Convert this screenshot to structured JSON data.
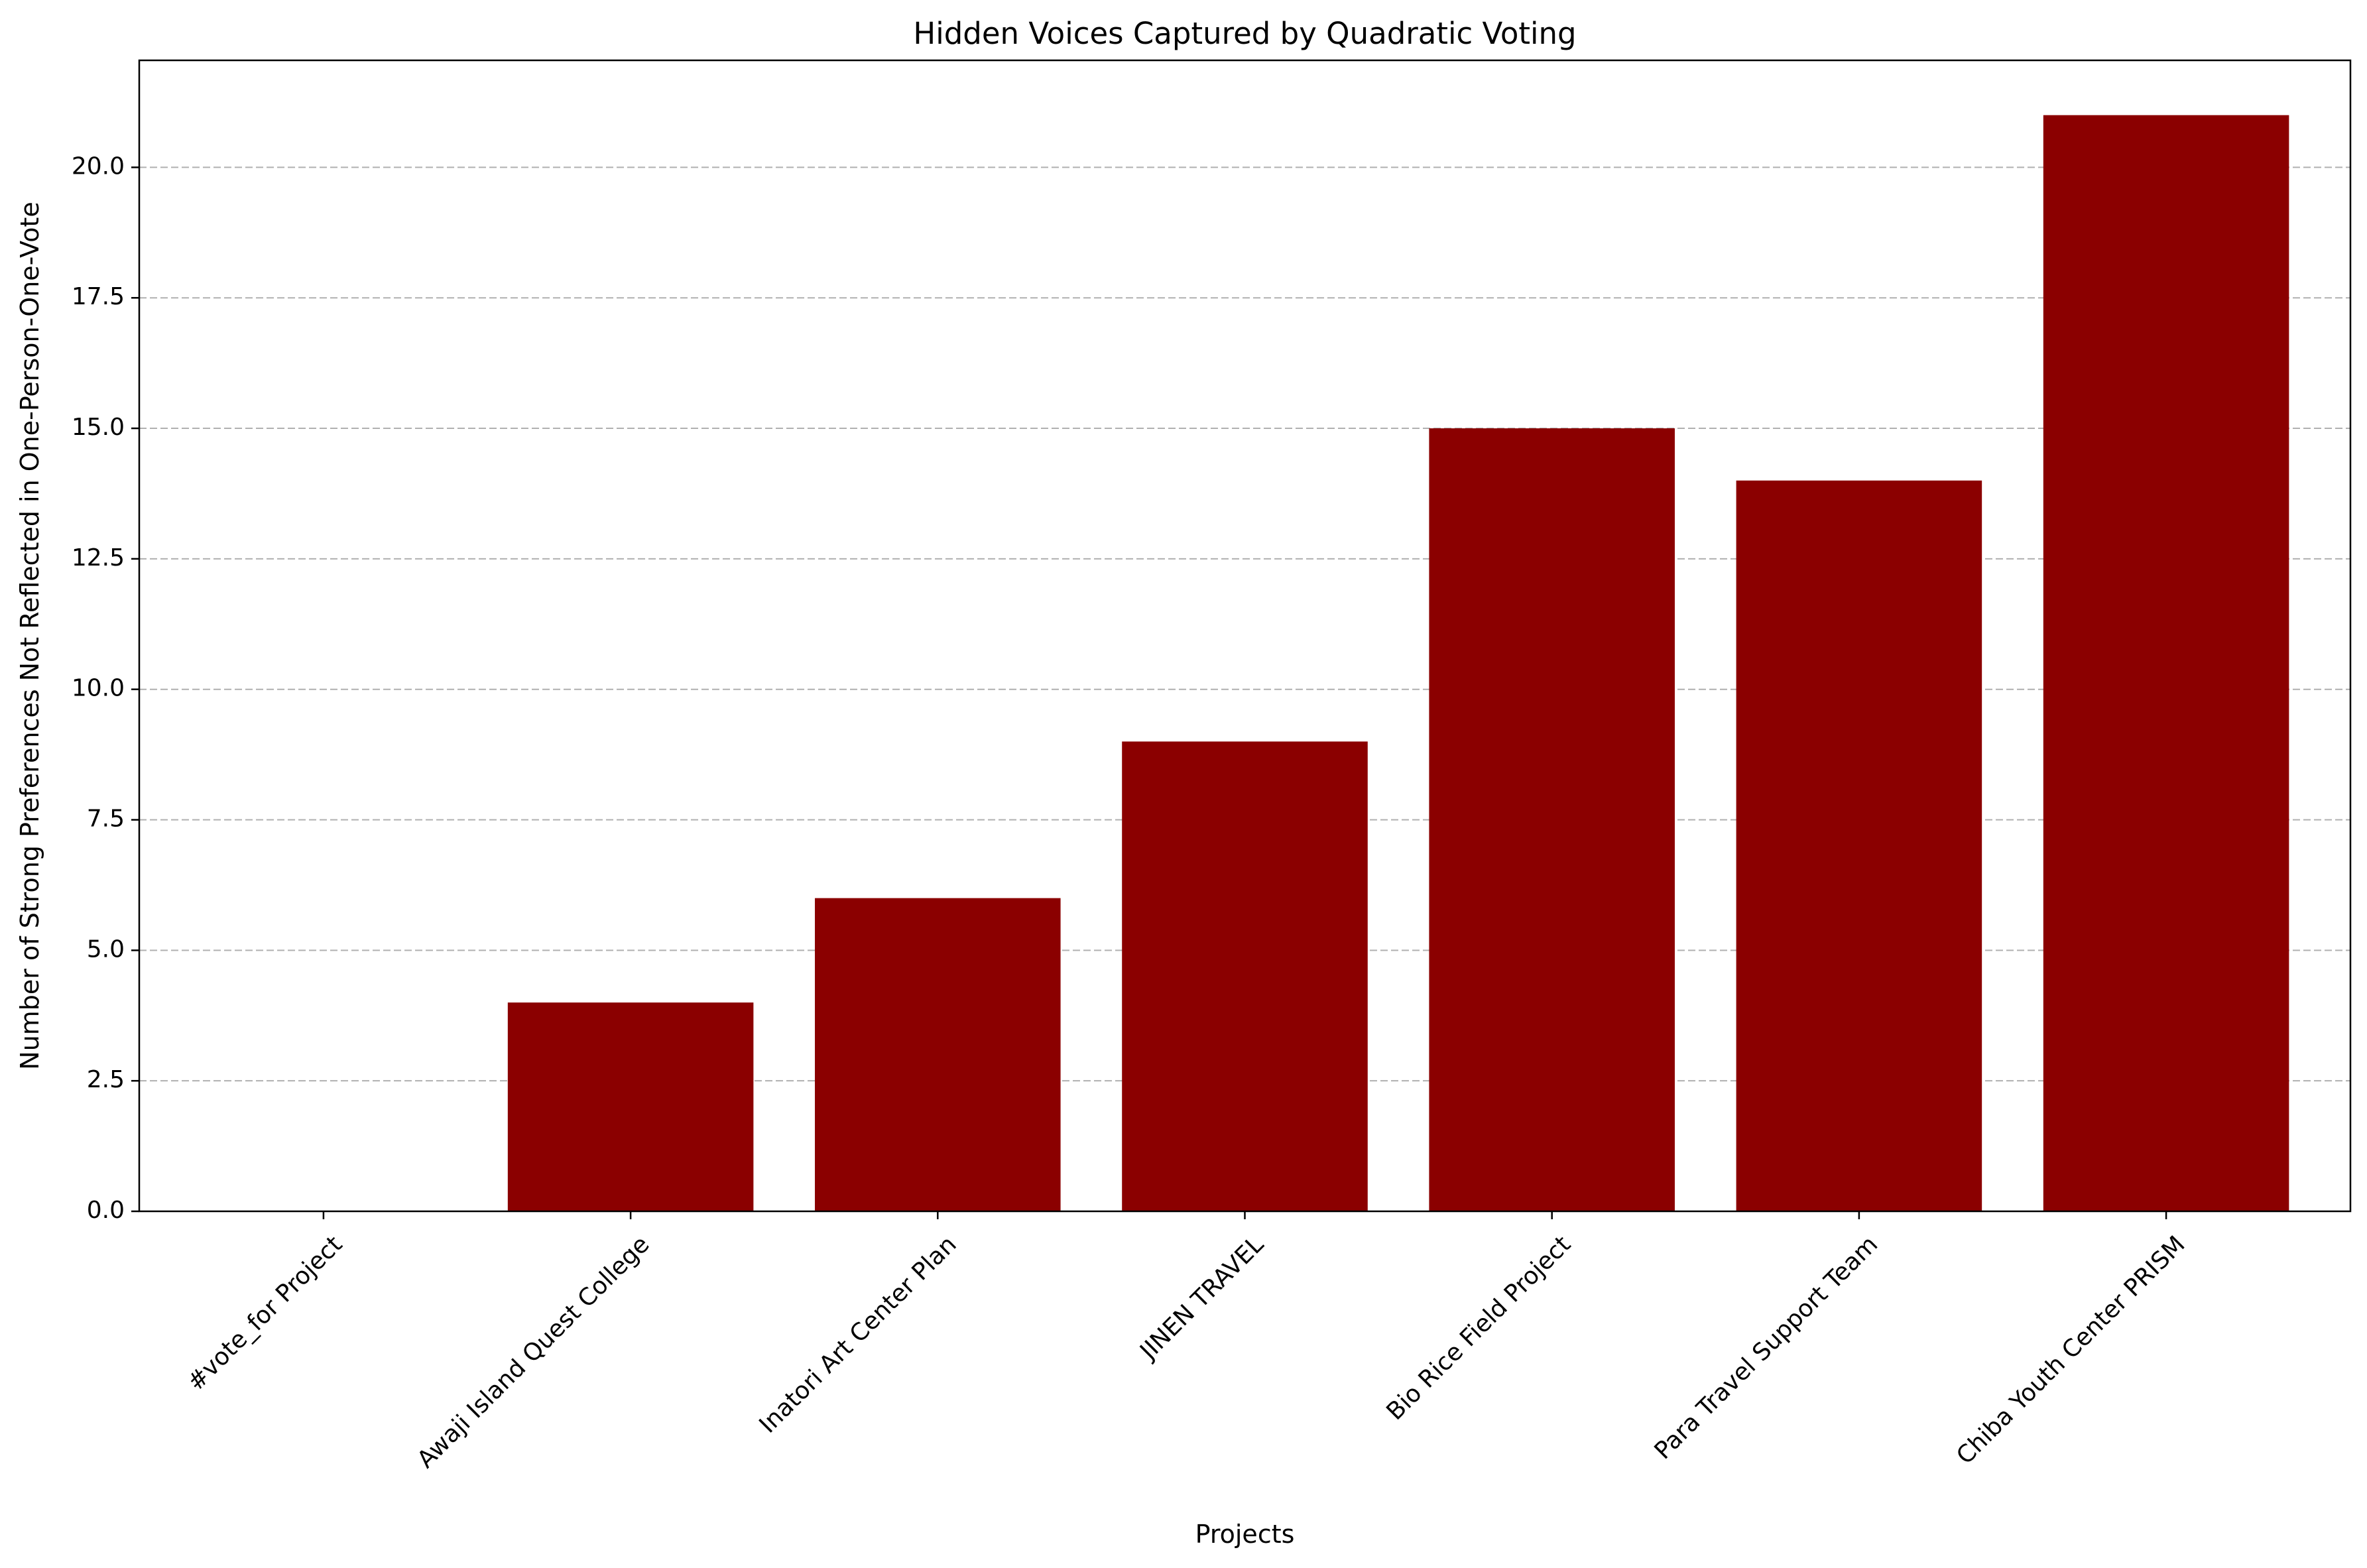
{
  "chart_data": {
    "type": "bar",
    "title": "Hidden Voices Captured by Quadratic Voting",
    "xlabel": "Projects",
    "ylabel": "Number of Strong Preferences Not Reflected in One-Person-One-Vote",
    "categories": [
      "#vote_for Project",
      "Awaji Island Quest College",
      "Inatori Art Center Plan",
      "JINEN TRAVEL",
      "Bio Rice Field Project",
      "Para Travel Support Team",
      "Chiba Youth Center PRISM"
    ],
    "values": [
      0,
      4,
      6,
      9,
      15,
      14,
      21
    ],
    "ylim": [
      0,
      22.05
    ],
    "yticks": [
      "0.0",
      "2.5",
      "5.0",
      "7.5",
      "10.0",
      "12.5",
      "15.0",
      "17.5",
      "20.0"
    ],
    "grid": "y-dashed",
    "bar_color": "#8b0000"
  }
}
